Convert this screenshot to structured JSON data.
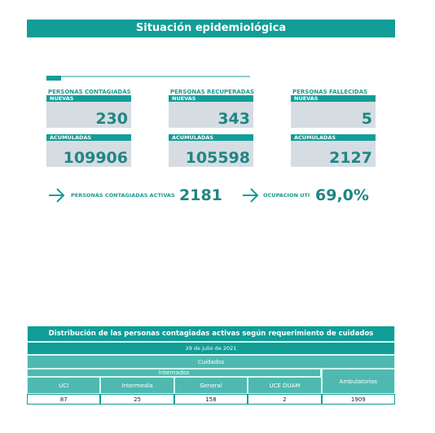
{
  "header": {
    "title": "Situación epidemiológica"
  },
  "panels": [
    {
      "label": "PERSONAS CONTAGIADAS",
      "new_label": "NUEVAS",
      "new": 230,
      "total_label": "ACUMULADAS",
      "total": 109906
    },
    {
      "label": "PERSONAS RECUPERADAS",
      "new_label": "NUEVAS",
      "new": 343,
      "total_label": "ACUMULADAS",
      "total": 105598
    },
    {
      "label": "PERSONAS FALLECIDAS",
      "new_label": "NUEVAS",
      "new": 5,
      "total_label": "ACUMULADAS",
      "total": 2127
    }
  ],
  "active": {
    "label": "PERSONAS CONTAGIADAS ACTIVAS",
    "value": 2181
  },
  "uti": {
    "label": "OCUPACION UTI",
    "value": "69,0%"
  },
  "table": {
    "title": "Distribución de las personas contagiadas activas según requerimiento de cuidados",
    "date": "29 de julio de 2021",
    "group": "Cuidados",
    "subgroup": "Internados",
    "columns": [
      "UCI",
      "Intermedia",
      "General",
      "UCE DUAM",
      "Ambulatorios"
    ],
    "values": [
      87,
      25,
      158,
      2,
      1909
    ]
  }
}
